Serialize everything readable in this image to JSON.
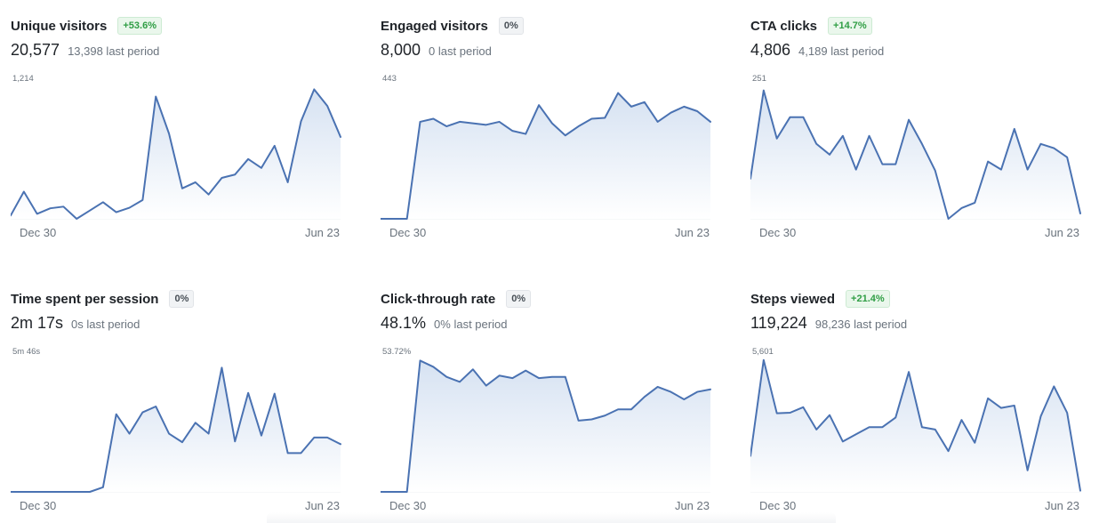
{
  "cards": [
    {
      "id": "unique-visitors",
      "title": "Unique visitors",
      "badge": "+53.6%",
      "badge_type": "positive",
      "value": "20,577",
      "prev": "13,398 last period"
    },
    {
      "id": "engaged-visitors",
      "title": "Engaged visitors",
      "badge": "0%",
      "badge_type": "neutral",
      "value": "8,000",
      "prev": "0 last period"
    },
    {
      "id": "cta-clicks",
      "title": "CTA clicks",
      "badge": "+14.7%",
      "badge_type": "positive",
      "value": "4,806",
      "prev": "4,189 last period"
    },
    {
      "id": "time-spent-per-session",
      "title": "Time spent per session",
      "badge": "0%",
      "badge_type": "neutral",
      "value": "2m 17s",
      "prev": "0s last period"
    },
    {
      "id": "click-through-rate",
      "title": "Click-through rate",
      "badge": "0%",
      "badge_type": "neutral",
      "value": "48.1%",
      "prev": "0% last period"
    },
    {
      "id": "steps-viewed",
      "title": "Steps viewed",
      "badge": "+21.4%",
      "badge_type": "positive",
      "value": "119,224",
      "prev": "98,236 last period"
    }
  ],
  "colors": {
    "line": "#4a72b2",
    "fill_top": "#d6e2f2",
    "fill_bottom": "#ffffff",
    "badge_positive_text": "#2f9e44",
    "badge_neutral_text": "#495057"
  },
  "chart_data": [
    {
      "type": "area",
      "title": "Unique visitors",
      "x_start_label": "Dec 30",
      "x_end_label": "Jun 23",
      "ymax_label": "1,214",
      "ylim": [
        0,
        1214
      ],
      "grid": false,
      "legend": "none",
      "values": [
        30,
        245,
        45,
        95,
        110,
        0,
        75,
        150,
        60,
        100,
        170,
        1105,
        770,
        275,
        330,
        220,
        370,
        400,
        540,
        460,
        660,
        330,
        880,
        1170,
        1020,
        740
      ]
    },
    {
      "type": "area",
      "title": "Engaged visitors",
      "x_start_label": "Dec 30",
      "x_end_label": "Jun 23",
      "ymax_label": "443",
      "ylim": [
        0,
        443
      ],
      "grid": false,
      "legend": "none",
      "values": [
        0,
        0,
        0,
        320,
        330,
        305,
        320,
        315,
        310,
        320,
        290,
        280,
        375,
        315,
        275,
        305,
        330,
        333,
        415,
        370,
        385,
        320,
        350,
        370,
        355,
        320
      ]
    },
    {
      "type": "area",
      "title": "CTA clicks",
      "x_start_label": "Dec 30",
      "x_end_label": "Jun 23",
      "ymax_label": "251",
      "ylim": [
        0,
        251
      ],
      "grid": false,
      "legend": "none",
      "values": [
        75,
        240,
        150,
        190,
        190,
        140,
        120,
        155,
        92,
        155,
        102,
        102,
        185,
        140,
        90,
        0,
        20,
        30,
        107,
        92,
        168,
        92,
        140,
        132,
        115,
        10
      ]
    },
    {
      "type": "area",
      "title": "Time spent per session",
      "x_start_label": "Dec 30",
      "x_end_label": "Jun 23",
      "ymax_label": "5m 46s",
      "ylim": [
        0,
        346
      ],
      "grid": false,
      "legend": "none",
      "values": [
        0,
        0,
        0,
        0,
        0,
        0,
        0,
        12,
        200,
        150,
        205,
        220,
        150,
        128,
        178,
        150,
        320,
        130,
        255,
        145,
        253,
        100,
        100,
        140,
        140,
        123
      ]
    },
    {
      "type": "area",
      "title": "Click-through rate",
      "x_start_label": "Dec 30",
      "x_end_label": "Jun 23",
      "ymax_label": "53.72%",
      "ylim": [
        0,
        53.72
      ],
      "grid": false,
      "legend": "none",
      "values": [
        0,
        0,
        0,
        52.5,
        50.0,
        46.0,
        44.0,
        49.0,
        42.5,
        46.5,
        45.5,
        48.5,
        45.5,
        46.0,
        46.0,
        28.5,
        29.0,
        30.5,
        33.0,
        33.0,
        38.0,
        42.0,
        40.0,
        37.0,
        40.0,
        41.0
      ]
    },
    {
      "type": "area",
      "title": "Steps viewed",
      "x_start_label": "Dec 30",
      "x_end_label": "Jun 23",
      "ymax_label": "5,601",
      "ylim": [
        0,
        5601
      ],
      "grid": false,
      "legend": "none",
      "values": [
        1500,
        5500,
        3280,
        3300,
        3530,
        2600,
        3200,
        2100,
        2400,
        2700,
        2700,
        3100,
        5000,
        2700,
        2600,
        1700,
        3000,
        2050,
        3900,
        3500,
        3600,
        900,
        3150,
        4400,
        3300,
        50
      ]
    }
  ]
}
